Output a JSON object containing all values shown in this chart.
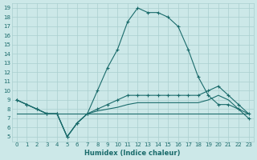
{
  "xlabel": "Humidex (Indice chaleur)",
  "ylabel": "",
  "background_color": "#cce8e8",
  "grid_color": "#aacfcf",
  "line_color": "#1a6b6b",
  "xlim": [
    -0.5,
    23.5
  ],
  "ylim": [
    4.5,
    19.5
  ],
  "xticks": [
    0,
    1,
    2,
    3,
    4,
    5,
    6,
    7,
    8,
    9,
    10,
    11,
    12,
    13,
    14,
    15,
    16,
    17,
    18,
    19,
    20,
    21,
    22,
    23
  ],
  "yticks": [
    5,
    6,
    7,
    8,
    9,
    10,
    11,
    12,
    13,
    14,
    15,
    16,
    17,
    18,
    19
  ],
  "line1": [
    9.0,
    8.5,
    8.0,
    7.5,
    7.5,
    5.0,
    6.5,
    7.5,
    10.0,
    12.5,
    14.5,
    17.5,
    19.0,
    18.5,
    18.5,
    18.0,
    17.0,
    14.5,
    11.5,
    9.5,
    8.5,
    8.5,
    8.0,
    7.0
  ],
  "line2": [
    7.5,
    7.5,
    7.5,
    7.5,
    7.5,
    7.5,
    7.5,
    7.5,
    7.5,
    7.5,
    7.5,
    7.5,
    7.5,
    7.5,
    7.5,
    7.5,
    7.5,
    7.5,
    7.5,
    7.5,
    7.5,
    7.5,
    7.5,
    7.5
  ],
  "line3": [
    9.0,
    8.5,
    8.0,
    7.5,
    7.5,
    5.0,
    6.5,
    7.5,
    8.0,
    8.5,
    9.0,
    9.5,
    9.5,
    9.5,
    9.5,
    9.5,
    9.5,
    9.5,
    9.5,
    10.0,
    10.5,
    9.5,
    8.5,
    7.5
  ],
  "line4": [
    9.0,
    8.5,
    8.0,
    7.5,
    7.5,
    5.0,
    6.5,
    7.5,
    7.8,
    8.0,
    8.2,
    8.5,
    8.7,
    8.7,
    8.7,
    8.7,
    8.7,
    8.7,
    8.7,
    9.0,
    9.5,
    9.0,
    8.0,
    7.5
  ]
}
